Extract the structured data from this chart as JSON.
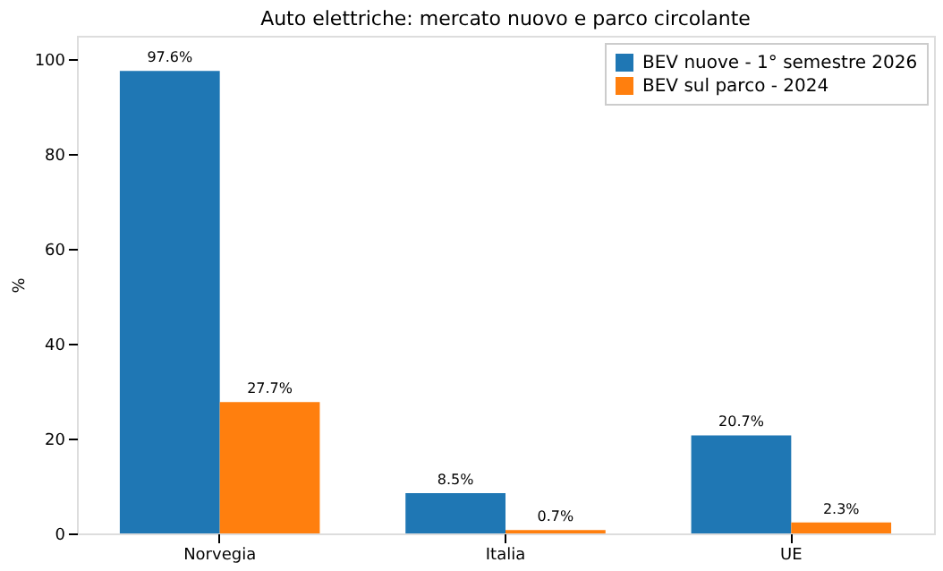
{
  "chart_data": {
    "type": "bar",
    "title": "Auto elettriche: mercato nuovo e parco circolante",
    "ylabel": "%",
    "categories": [
      "Norvegia",
      "Italia",
      "UE"
    ],
    "series": [
      {
        "name": "BEV nuove - 1° semestre 2026",
        "color": "#1f77b4",
        "values": [
          97.6,
          8.5,
          20.7
        ],
        "value_labels": [
          "97.6%",
          "8.5%",
          "20.7%"
        ]
      },
      {
        "name": "BEV sul parco - 2024",
        "color": "#ff7f0e",
        "values": [
          27.7,
          0.7,
          2.3
        ],
        "value_labels": [
          "27.7%",
          "0.7%",
          "2.3%"
        ]
      }
    ],
    "ylim": [
      0,
      105
    ],
    "yticks": [
      0,
      20,
      40,
      60,
      80,
      100
    ],
    "grid": false,
    "legend": "top right"
  }
}
